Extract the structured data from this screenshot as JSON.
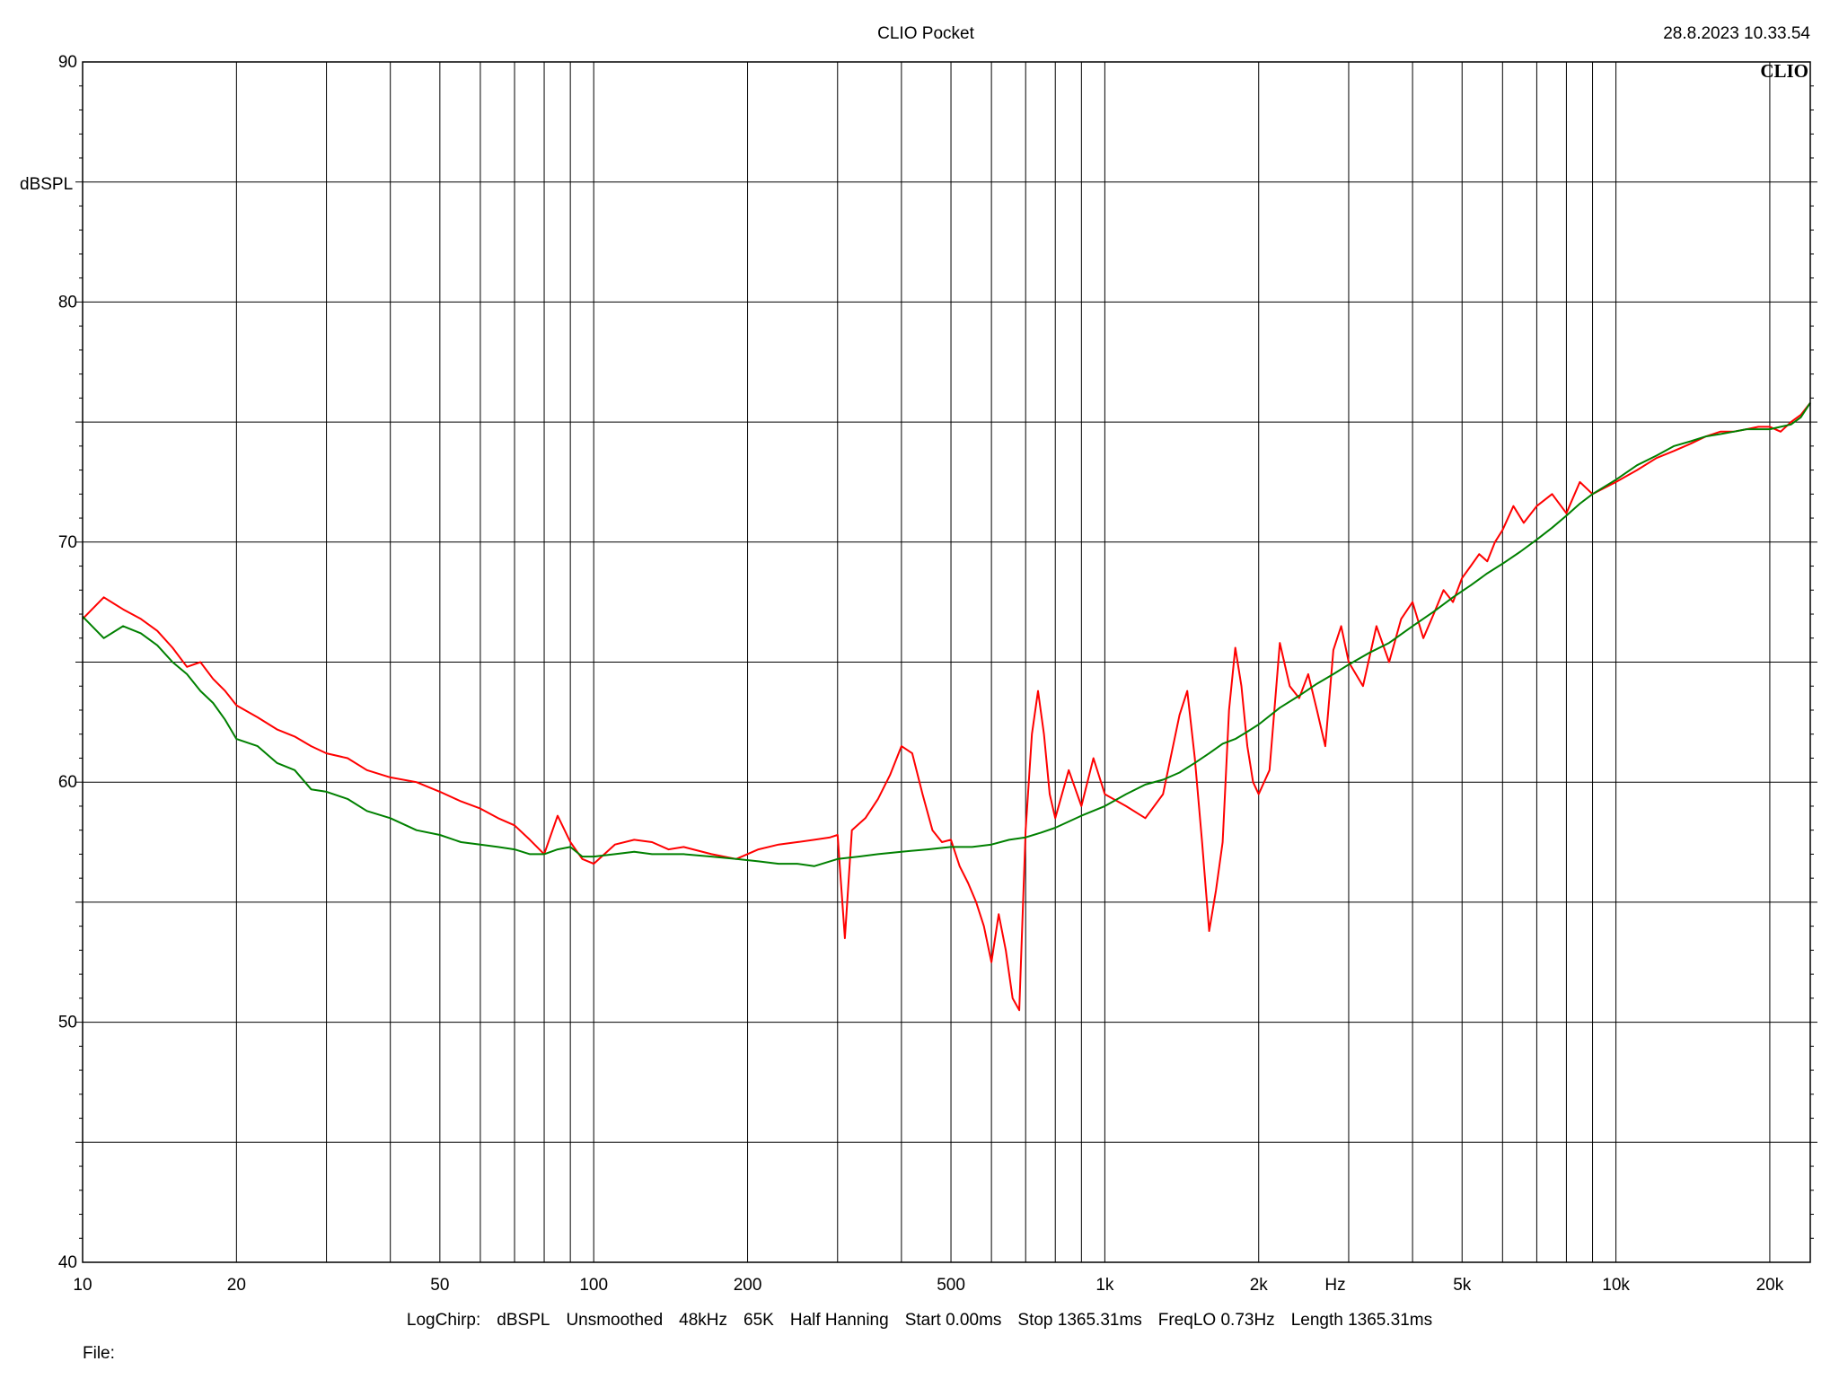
{
  "header": {
    "title": "CLIO Pocket",
    "timestamp": "28.8.2023 10.33.54",
    "logo_text": "CLIO"
  },
  "chart_data": {
    "type": "line",
    "title": "CLIO Pocket",
    "xlabel": "Hz",
    "ylabel": "dBSPL",
    "x_scale": "log",
    "xlim": [
      10,
      24000
    ],
    "ylim": [
      40,
      90
    ],
    "grid": true,
    "x_tick_labels": [
      {
        "value": 10,
        "label": "10"
      },
      {
        "value": 20,
        "label": "20"
      },
      {
        "value": 50,
        "label": "50"
      },
      {
        "value": 100,
        "label": "100"
      },
      {
        "value": 200,
        "label": "200"
      },
      {
        "value": 500,
        "label": "500"
      },
      {
        "value": 1000,
        "label": "1k"
      },
      {
        "value": 2000,
        "label": "2k"
      },
      {
        "value": 5000,
        "label": "5k"
      },
      {
        "value": 10000,
        "label": "10k"
      },
      {
        "value": 20000,
        "label": "20k"
      }
    ],
    "y_tick_labels": [
      40,
      50,
      60,
      70,
      80,
      90
    ],
    "series": [
      {
        "color": "#ff0000",
        "x": [
          10,
          11,
          12,
          13,
          14,
          15,
          16,
          17,
          18,
          19,
          20,
          22,
          24,
          26,
          28,
          30,
          33,
          36,
          40,
          45,
          50,
          55,
          60,
          65,
          70,
          75,
          80,
          85,
          90,
          95,
          100,
          110,
          120,
          130,
          140,
          150,
          170,
          190,
          210,
          230,
          250,
          270,
          290,
          300,
          310,
          320,
          340,
          360,
          380,
          400,
          420,
          440,
          460,
          480,
          500,
          520,
          540,
          560,
          580,
          600,
          620,
          640,
          660,
          680,
          700,
          720,
          740,
          760,
          780,
          800,
          850,
          900,
          950,
          1000,
          1100,
          1200,
          1300,
          1400,
          1450,
          1500,
          1550,
          1600,
          1650,
          1700,
          1750,
          1800,
          1850,
          1900,
          1950,
          2000,
          2100,
          2200,
          2300,
          2400,
          2500,
          2600,
          2700,
          2800,
          2900,
          3000,
          3200,
          3400,
          3600,
          3800,
          4000,
          4200,
          4400,
          4600,
          4800,
          5000,
          5200,
          5400,
          5600,
          5800,
          6000,
          6300,
          6600,
          7000,
          7500,
          8000,
          8500,
          9000,
          10000,
          11000,
          12000,
          13000,
          14000,
          15000,
          16000,
          17000,
          18000,
          19000,
          20000,
          21000,
          22000,
          23000,
          24000
        ],
        "y": [
          66.8,
          67.7,
          67.2,
          66.8,
          66.3,
          65.6,
          64.8,
          65.0,
          64.3,
          63.8,
          63.2,
          62.7,
          62.2,
          61.9,
          61.5,
          61.2,
          61.0,
          60.5,
          60.2,
          60.0,
          59.6,
          59.2,
          58.9,
          58.5,
          58.2,
          57.6,
          57.0,
          58.6,
          57.5,
          56.8,
          56.6,
          57.4,
          57.6,
          57.5,
          57.2,
          57.3,
          57.0,
          56.8,
          57.2,
          57.4,
          57.5,
          57.6,
          57.7,
          57.8,
          53.5,
          58.0,
          58.5,
          59.3,
          60.3,
          61.5,
          61.2,
          59.5,
          58.0,
          57.5,
          57.6,
          56.5,
          55.8,
          55.0,
          54.0,
          52.5,
          54.5,
          53.0,
          51.0,
          50.5,
          58.0,
          62.0,
          63.8,
          62.0,
          59.5,
          58.5,
          60.5,
          59.0,
          61.0,
          59.5,
          59.0,
          58.5,
          59.5,
          62.8,
          63.8,
          61.0,
          57.5,
          53.8,
          55.5,
          57.5,
          63.0,
          65.6,
          64.0,
          61.5,
          60.0,
          59.5,
          60.5,
          65.8,
          64.0,
          63.5,
          64.5,
          63.0,
          61.5,
          65.5,
          66.5,
          65.0,
          64.0,
          66.5,
          65.0,
          66.8,
          67.5,
          66.0,
          67.0,
          68.0,
          67.5,
          68.5,
          69.0,
          69.5,
          69.2,
          70.0,
          70.5,
          71.5,
          70.8,
          71.5,
          72.0,
          71.2,
          72.5,
          72.0,
          72.5,
          73.0,
          73.5,
          73.8,
          74.1,
          74.4,
          74.6,
          74.6,
          74.7,
          74.8,
          74.8,
          74.6,
          75.0,
          75.3,
          75.8
        ]
      },
      {
        "color": "#008000",
        "x": [
          10,
          11,
          12,
          13,
          14,
          15,
          16,
          17,
          18,
          19,
          20,
          22,
          24,
          26,
          28,
          30,
          33,
          36,
          40,
          45,
          50,
          55,
          60,
          65,
          70,
          75,
          80,
          85,
          90,
          95,
          100,
          110,
          120,
          130,
          140,
          150,
          170,
          190,
          210,
          230,
          250,
          270,
          300,
          330,
          360,
          400,
          450,
          500,
          550,
          600,
          650,
          700,
          750,
          800,
          900,
          1000,
          1100,
          1200,
          1300,
          1400,
          1500,
          1600,
          1700,
          1800,
          1900,
          2000,
          2200,
          2400,
          2600,
          2800,
          3000,
          3300,
          3600,
          4000,
          4400,
          4800,
          5200,
          5600,
          6000,
          6500,
          7000,
          7500,
          8000,
          8500,
          9000,
          10000,
          11000,
          12000,
          13000,
          14000,
          15000,
          16000,
          17000,
          18000,
          19000,
          20000,
          21000,
          22000,
          23000,
          24000
        ],
        "y": [
          66.9,
          66.0,
          66.5,
          66.2,
          65.7,
          65.0,
          64.5,
          63.8,
          63.3,
          62.6,
          61.8,
          61.5,
          60.8,
          60.5,
          59.7,
          59.6,
          59.3,
          58.8,
          58.5,
          58.0,
          57.8,
          57.5,
          57.4,
          57.3,
          57.2,
          57.0,
          57.0,
          57.2,
          57.3,
          56.9,
          56.9,
          57.0,
          57.1,
          57.0,
          57.0,
          57.0,
          56.9,
          56.8,
          56.7,
          56.6,
          56.6,
          56.5,
          56.8,
          56.9,
          57.0,
          57.1,
          57.2,
          57.3,
          57.3,
          57.4,
          57.6,
          57.7,
          57.9,
          58.1,
          58.6,
          59.0,
          59.5,
          59.9,
          60.1,
          60.4,
          60.8,
          61.2,
          61.6,
          61.8,
          62.1,
          62.4,
          63.1,
          63.6,
          64.1,
          64.5,
          64.9,
          65.4,
          65.8,
          66.5,
          67.1,
          67.7,
          68.2,
          68.7,
          69.1,
          69.6,
          70.1,
          70.6,
          71.1,
          71.6,
          72.0,
          72.6,
          73.2,
          73.6,
          74.0,
          74.2,
          74.4,
          74.5,
          74.6,
          74.7,
          74.7,
          74.7,
          74.8,
          74.9,
          75.2,
          75.8
        ]
      }
    ]
  },
  "footer": {
    "status_items": [
      "LogChirp:",
      "dBSPL",
      "Unsmoothed",
      "48kHz",
      "65K",
      "Half Hanning",
      "Start 0.00ms",
      "Stop 1365.31ms",
      "FreqLO 0.73Hz",
      "Length 1365.31ms"
    ],
    "file_label": "File:"
  }
}
